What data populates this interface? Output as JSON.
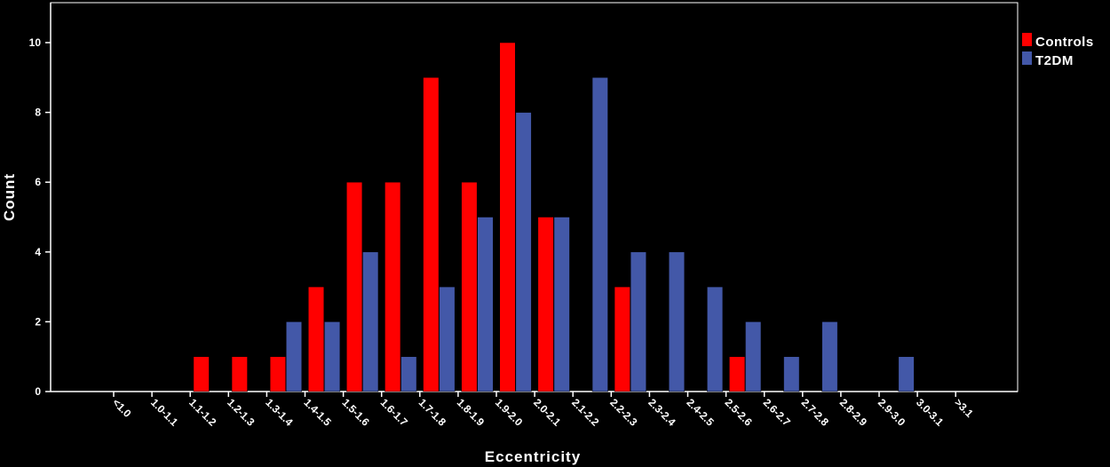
{
  "chart_data": {
    "type": "bar",
    "xlabel": "Eccentricity",
    "ylabel": "Count",
    "ylim": [
      0,
      11
    ],
    "yticks": [
      0,
      2,
      4,
      6,
      8,
      10
    ],
    "grid": false,
    "legend_position": "top-right",
    "categories": [
      "<1.0",
      "1.0-1.1",
      "1.1-1.2",
      "1.2-1.3",
      "1.3-1.4",
      "1.4-1.5",
      "1.5-1.6",
      "1.6-1.7",
      "1.7-1.8",
      "1.8-1.9",
      "1.9-2.0",
      "2.0-2.1",
      "2.1-2.2",
      "2.2-2.3",
      "2.3-2.4",
      "2.4-2.5",
      "2.5-2.6",
      "2.6-2.7",
      "2.7-2.8",
      "2.8-2.9",
      "2.9-3.0",
      "3.0-3.1",
      ">3.1"
    ],
    "series": [
      {
        "name": "Controls",
        "color": "#ff0000",
        "values": [
          0,
          0,
          1,
          1,
          1,
          3,
          6,
          6,
          9,
          6,
          10,
          5,
          0,
          3,
          0,
          0,
          1,
          0,
          0,
          0,
          0,
          0,
          0
        ]
      },
      {
        "name": "T2DM",
        "color": "#4358a8",
        "values": [
          0,
          0,
          0,
          0,
          2,
          2,
          4,
          1,
          3,
          5,
          8,
          5,
          9,
          4,
          4,
          3,
          2,
          1,
          2,
          0,
          1,
          0,
          0
        ]
      }
    ]
  }
}
